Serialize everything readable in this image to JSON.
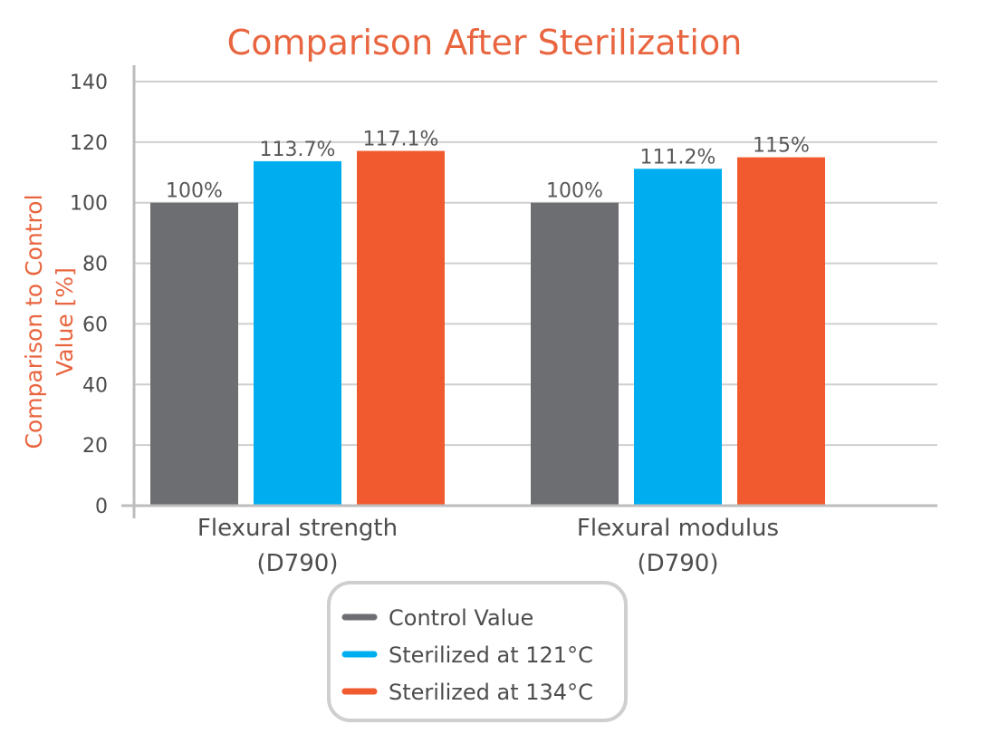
{
  "chart_data": {
    "type": "bar",
    "title": "Comparison After Sterilization",
    "ylabel": "Comparison to Control Value [%]",
    "ylabel_lines": [
      "Comparison to Control",
      "Value [%]"
    ],
    "xlabel": "",
    "ylim": [
      0,
      140
    ],
    "yticks": [
      0,
      20,
      40,
      60,
      80,
      100,
      120,
      140
    ],
    "grid": true,
    "legend_position": "bottom-center",
    "categories": [
      [
        "Flexural strength",
        "(D790)"
      ],
      [
        "Flexural modulus",
        "(D790)"
      ]
    ],
    "series": [
      {
        "name": "Control Value",
        "values": [
          100,
          100
        ],
        "labels": [
          "100%",
          "100%"
        ],
        "color": "#6d6e71"
      },
      {
        "name": "Sterilized at 121°C",
        "values": [
          113.7,
          111.2
        ],
        "labels": [
          "113.7%",
          "111.2%"
        ],
        "color": "#00aeef"
      },
      {
        "name": "Sterilized at 134°C",
        "values": [
          117.1,
          115
        ],
        "labels": [
          "117.1%",
          "115%"
        ],
        "color": "#f15a2f"
      }
    ]
  }
}
